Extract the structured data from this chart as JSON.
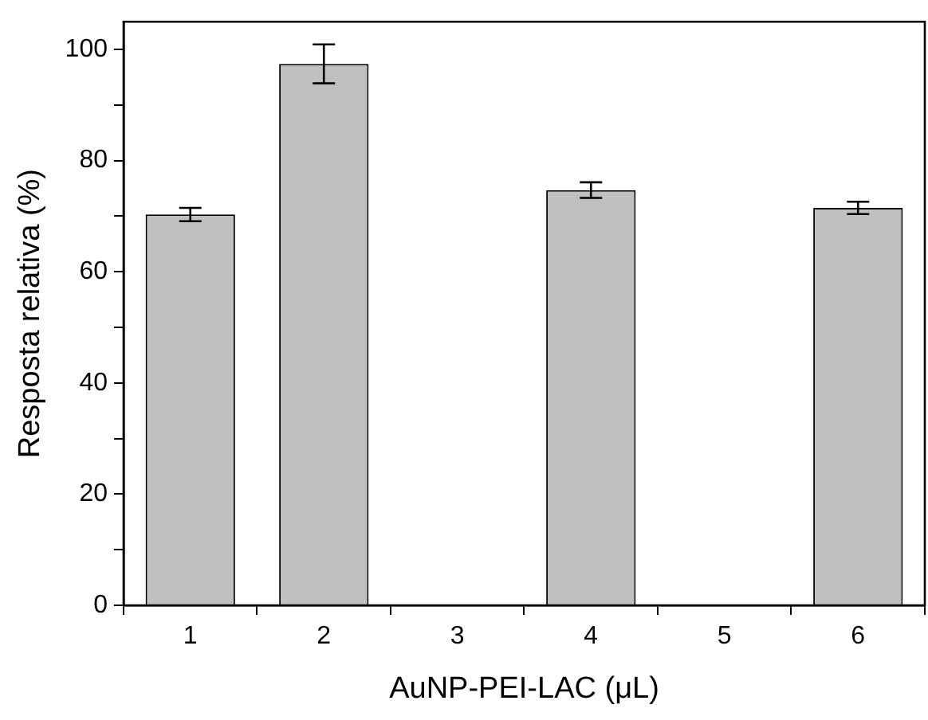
{
  "chart_data": {
    "type": "bar",
    "xlabel": "AuNP-PEI-LAC (μL)",
    "ylabel": "Resposta relativa (%)",
    "categories": [
      "1",
      "2",
      "3",
      "4",
      "5",
      "6"
    ],
    "values": [
      70.3,
      97.4,
      null,
      74.7,
      null,
      71.5
    ],
    "errors": [
      1.2,
      3.5,
      null,
      1.4,
      null,
      1.1
    ],
    "color": "#c0c0c0",
    "ylim": [
      0,
      105
    ],
    "yticks": [
      0,
      {
        "value": 10,
        "label": null
      },
      20,
      {
        "value": 30,
        "label": null
      },
      40,
      {
        "value": 50,
        "label": null
      },
      60,
      {
        "value": 70,
        "label": null
      },
      80,
      {
        "value": 90,
        "label": null
      },
      100
    ],
    "grid": false,
    "legend": false
  }
}
